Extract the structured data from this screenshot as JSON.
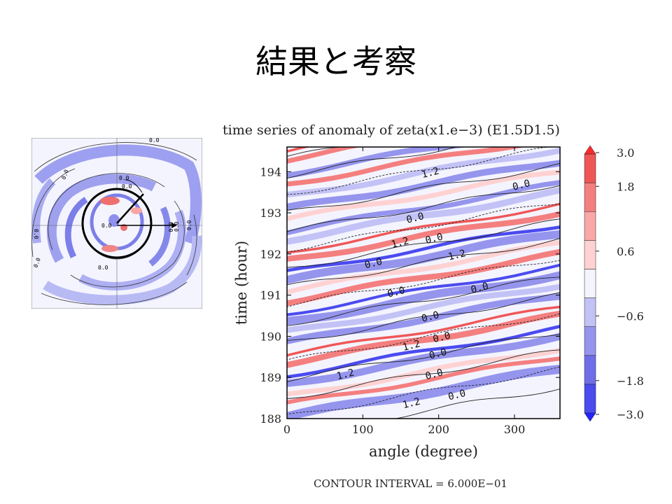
{
  "slide": {
    "title": "結果と考察"
  },
  "inset": {
    "contour_label": "0.0"
  },
  "chart_data": {
    "type": "heatmap",
    "title": "time series of anomaly of zeta(x1.e−3) (E1.5D1.5)",
    "xlabel": "angle (degree)",
    "ylabel": "time (hour)",
    "xlim": [
      0,
      360
    ],
    "ylim": [
      188,
      194.6
    ],
    "x_ticks": [
      "0",
      "100",
      "200",
      "300"
    ],
    "x_tick_values": [
      0,
      100,
      200,
      300
    ],
    "y_ticks": [
      "188",
      "189",
      "190",
      "191",
      "192",
      "193",
      "194"
    ],
    "y_tick_values": [
      188,
      189,
      190,
      191,
      192,
      193,
      194
    ],
    "colorbar": {
      "labels": [
        "3.0",
        "1.8",
        "0.6",
        "−0.6",
        "−1.8",
        "−3.0"
      ],
      "label_values": [
        3.0,
        1.8,
        0.6,
        -0.6,
        -1.8,
        -3.0
      ],
      "levels": [
        -3.0,
        -2.4,
        -1.8,
        -1.2,
        -0.6,
        0.0,
        0.6,
        1.2,
        1.8,
        2.4,
        3.0
      ],
      "colors": [
        "#2323ff",
        "#4b4bf0",
        "#6e6ee8",
        "#9595ee",
        "#c2c2f6",
        "#f4f4ff",
        "#ffd2d2",
        "#f9a7a7",
        "#f47f7f",
        "#ef5757",
        "#ff2a2a"
      ]
    },
    "contour_interval": "CONTOUR INTERVAL = 6.000E−01",
    "contour_labels": [
      {
        "text": "1.2",
        "x": 190,
        "y": 193.9
      },
      {
        "text": "0.0",
        "x": 310,
        "y": 193.6
      },
      {
        "text": "0.0",
        "x": 170,
        "y": 192.8
      },
      {
        "text": "1.2",
        "x": 150,
        "y": 192.2
      },
      {
        "text": "0.0",
        "x": 195,
        "y": 192.3
      },
      {
        "text": "1.2",
        "x": 225,
        "y": 191.9
      },
      {
        "text": "0.0",
        "x": 115,
        "y": 191.7
      },
      {
        "text": "0.0",
        "x": 145,
        "y": 191.0
      },
      {
        "text": "0.0",
        "x": 255,
        "y": 191.1
      },
      {
        "text": "0.0",
        "x": 190,
        "y": 190.4
      },
      {
        "text": "0.0",
        "x": 205,
        "y": 189.9
      },
      {
        "text": "1.2",
        "x": 165,
        "y": 189.7
      },
      {
        "text": "0.0",
        "x": 200,
        "y": 189.5
      },
      {
        "text": "1.2",
        "x": 78,
        "y": 189.0
      },
      {
        "text": "0.0",
        "x": 195,
        "y": 189.0
      },
      {
        "text": "1.2",
        "x": 165,
        "y": 188.3
      },
      {
        "text": "0.0",
        "x": 225,
        "y": 188.5
      }
    ]
  }
}
